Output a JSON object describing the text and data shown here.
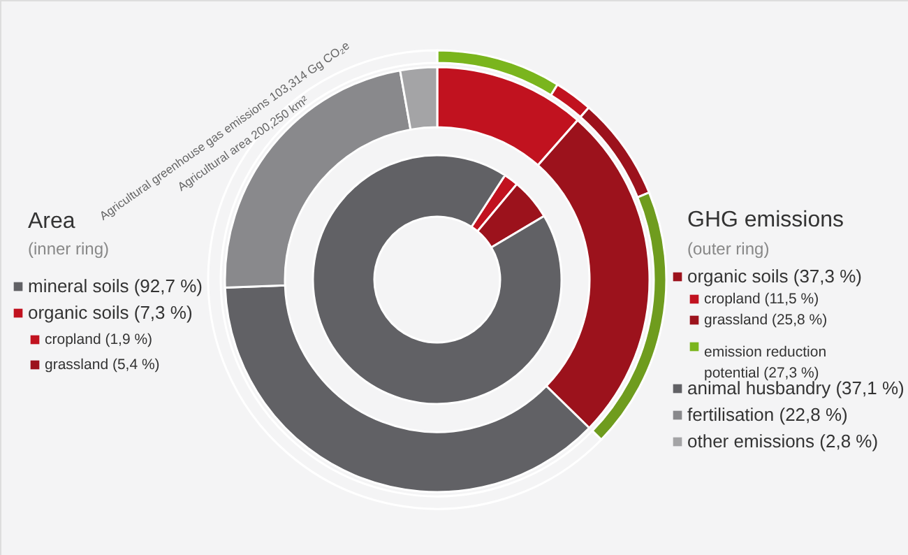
{
  "chart_data": [
    {
      "type": "donut",
      "title": "Area",
      "subtitle": "(inner ring)",
      "categories": [
        "cropland (1,9 %)",
        "grassland (5,4 %)",
        "mineral soils (92,7 %)"
      ],
      "values": [
        1.9,
        5.4,
        92.7
      ],
      "colors": [
        "#c1121f",
        "#9c121c",
        "#616165"
      ],
      "annotations": [
        "Agricultural area 200,250 km²",
        "organic soils (7,3 %)"
      ],
      "legend": "left"
    },
    {
      "type": "donut",
      "title": "GHG emissions",
      "subtitle": "(outer ring)",
      "categories": [
        "cropland (11,5 %)",
        "grassland (25,8 %)",
        "animal husbandry (37,1 %)",
        "fertilisation (22,8 %)",
        "other emissions (2,8 %)"
      ],
      "values": [
        11.5,
        25.8,
        37.1,
        22.8,
        2.8
      ],
      "colors": [
        "#c1121f",
        "#9c121c",
        "#616165",
        "#89898c",
        "#a4a4a6"
      ],
      "annotations": [
        "Agricultural greenhouse gas emissions 103,314 Gg CO₂e",
        "organic soils (37,3 %)"
      ],
      "legend": "right"
    },
    {
      "type": "donut",
      "categories": [
        "emission reduction\npotential (27,3 %)",
        null,
        null,
        null,
        null
      ],
      "values": [
        8.8,
        2.7,
        7.3,
        18.5,
        62.7
      ],
      "colors": [
        "#7ab51d",
        "#c1121f",
        "#9c121c",
        "#6f9c1e",
        "#f4f4f5"
      ],
      "legend": "right"
    }
  ]
}
